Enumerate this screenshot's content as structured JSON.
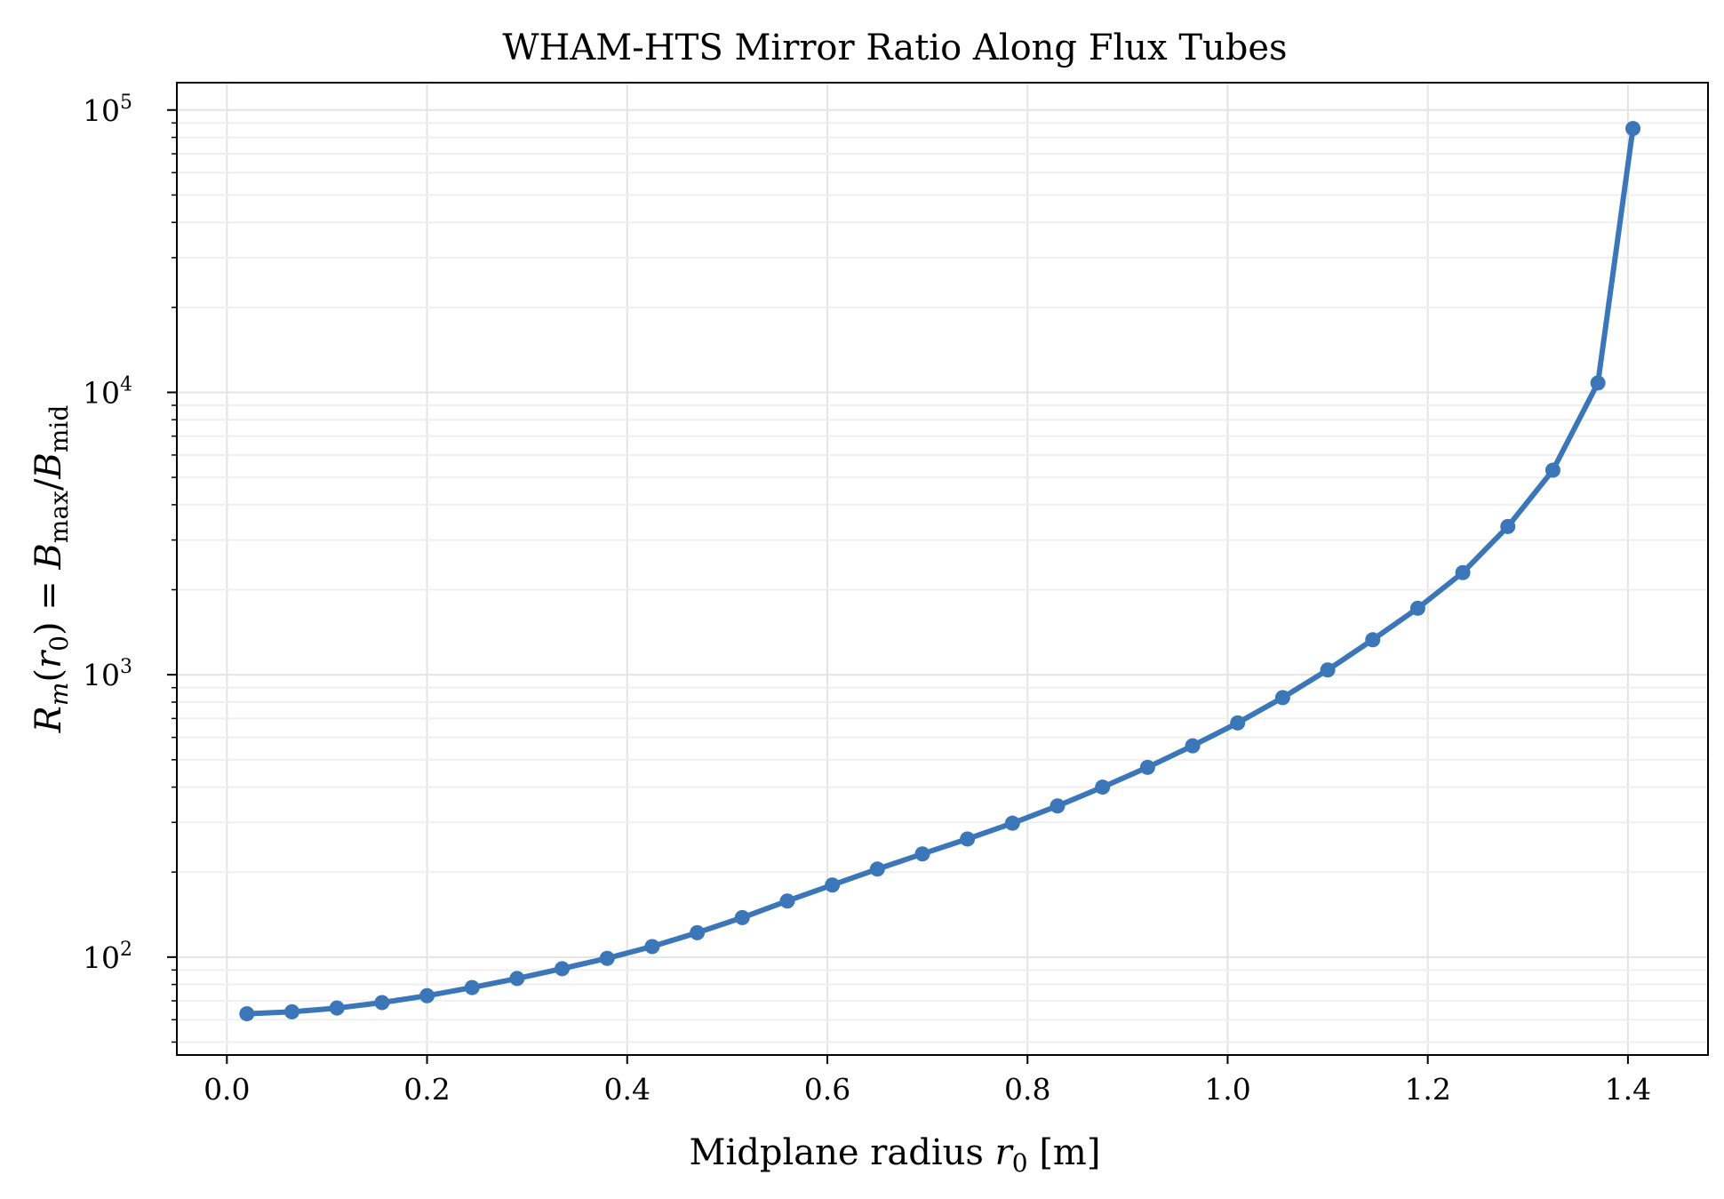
{
  "chart_data": {
    "type": "line",
    "title": "WHAM-HTS Mirror Ratio Along Flux Tubes",
    "xlabel": {
      "prefix": "Midplane radius ",
      "var": "r",
      "sub": "0",
      "unit": " [m]"
    },
    "ylabel": {
      "R": "R",
      "m": "m",
      "open": "(",
      "r": "r",
      "zero": "0",
      "close": ") = ",
      "B1": "B",
      "max": "max",
      "slash": "/",
      "B2": "B",
      "mid": "mid"
    },
    "xlim": [
      -0.05,
      1.48
    ],
    "ylim": [
      45,
      125000
    ],
    "yscale": "log",
    "grid": true,
    "xticks": [
      {
        "value": 0.0,
        "label": "0.0"
      },
      {
        "value": 0.2,
        "label": "0.2"
      },
      {
        "value": 0.4,
        "label": "0.4"
      },
      {
        "value": 0.6,
        "label": "0.6"
      },
      {
        "value": 0.8,
        "label": "0.8"
      },
      {
        "value": 1.0,
        "label": "1.0"
      },
      {
        "value": 1.2,
        "label": "1.2"
      },
      {
        "value": 1.4,
        "label": "1.4"
      }
    ],
    "yticks": [
      {
        "value": 100,
        "base": "10",
        "exp": "2"
      },
      {
        "value": 1000,
        "base": "10",
        "exp": "3"
      },
      {
        "value": 10000,
        "base": "10",
        "exp": "4"
      },
      {
        "value": 100000,
        "base": "10",
        "exp": "5"
      }
    ],
    "color": "#3a76b8",
    "series": [
      {
        "x": [
          0.02,
          0.065,
          0.11,
          0.155,
          0.2,
          0.245,
          0.29,
          0.335,
          0.38,
          0.425,
          0.47,
          0.515,
          0.56,
          0.605,
          0.65,
          0.695,
          0.74,
          0.785,
          0.83,
          0.875,
          0.92,
          0.965,
          1.01,
          1.055,
          1.1,
          1.145,
          1.19,
          1.235,
          1.28,
          1.325,
          1.37,
          1.405
        ],
        "y": [
          63,
          64,
          66,
          69,
          73,
          78,
          84,
          91,
          99,
          109,
          122,
          138,
          158,
          180,
          205,
          232,
          262,
          298,
          343,
          400,
          470,
          560,
          675,
          830,
          1040,
          1330,
          1720,
          2300,
          3350,
          5300,
          10800,
          86000
        ]
      }
    ]
  }
}
